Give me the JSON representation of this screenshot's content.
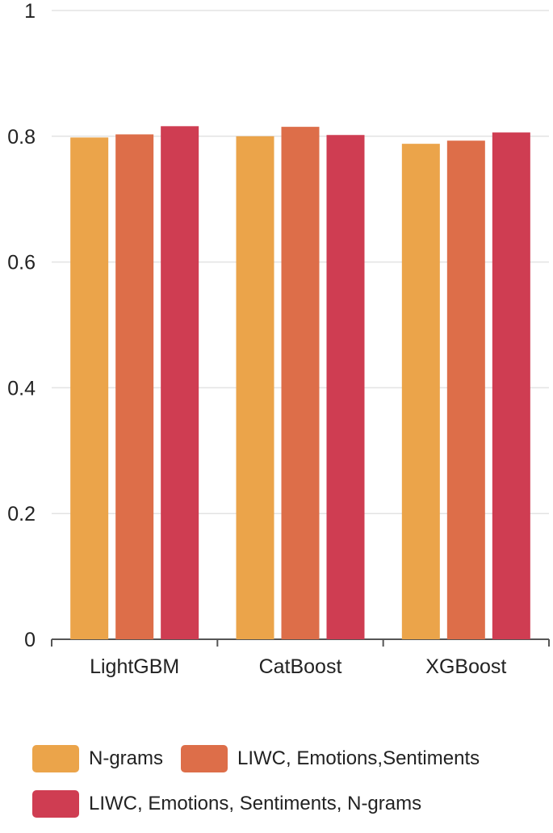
{
  "chart_data": {
    "type": "bar",
    "title": "",
    "xlabel": "",
    "ylabel": "",
    "categories": [
      "LightGBM",
      "CatBoost",
      "XGBoost"
    ],
    "series": [
      {
        "name": "N-grams",
        "color": "#EBA44A",
        "values": [
          0.798,
          0.8,
          0.788
        ]
      },
      {
        "name": "LIWC, Emotions,Sentiments",
        "color": "#DD6E49",
        "values": [
          0.803,
          0.815,
          0.793
        ]
      },
      {
        "name": "LIWC, Emotions, Sentiments, N-grams",
        "color": "#CF3D52",
        "values": [
          0.816,
          0.802,
          0.806
        ]
      }
    ],
    "ylim": [
      0,
      1
    ],
    "yticks": [
      "0",
      "0.2",
      "0.4",
      "0.6",
      "0.8",
      "1"
    ],
    "grid": true,
    "legend_position": "bottom"
  }
}
